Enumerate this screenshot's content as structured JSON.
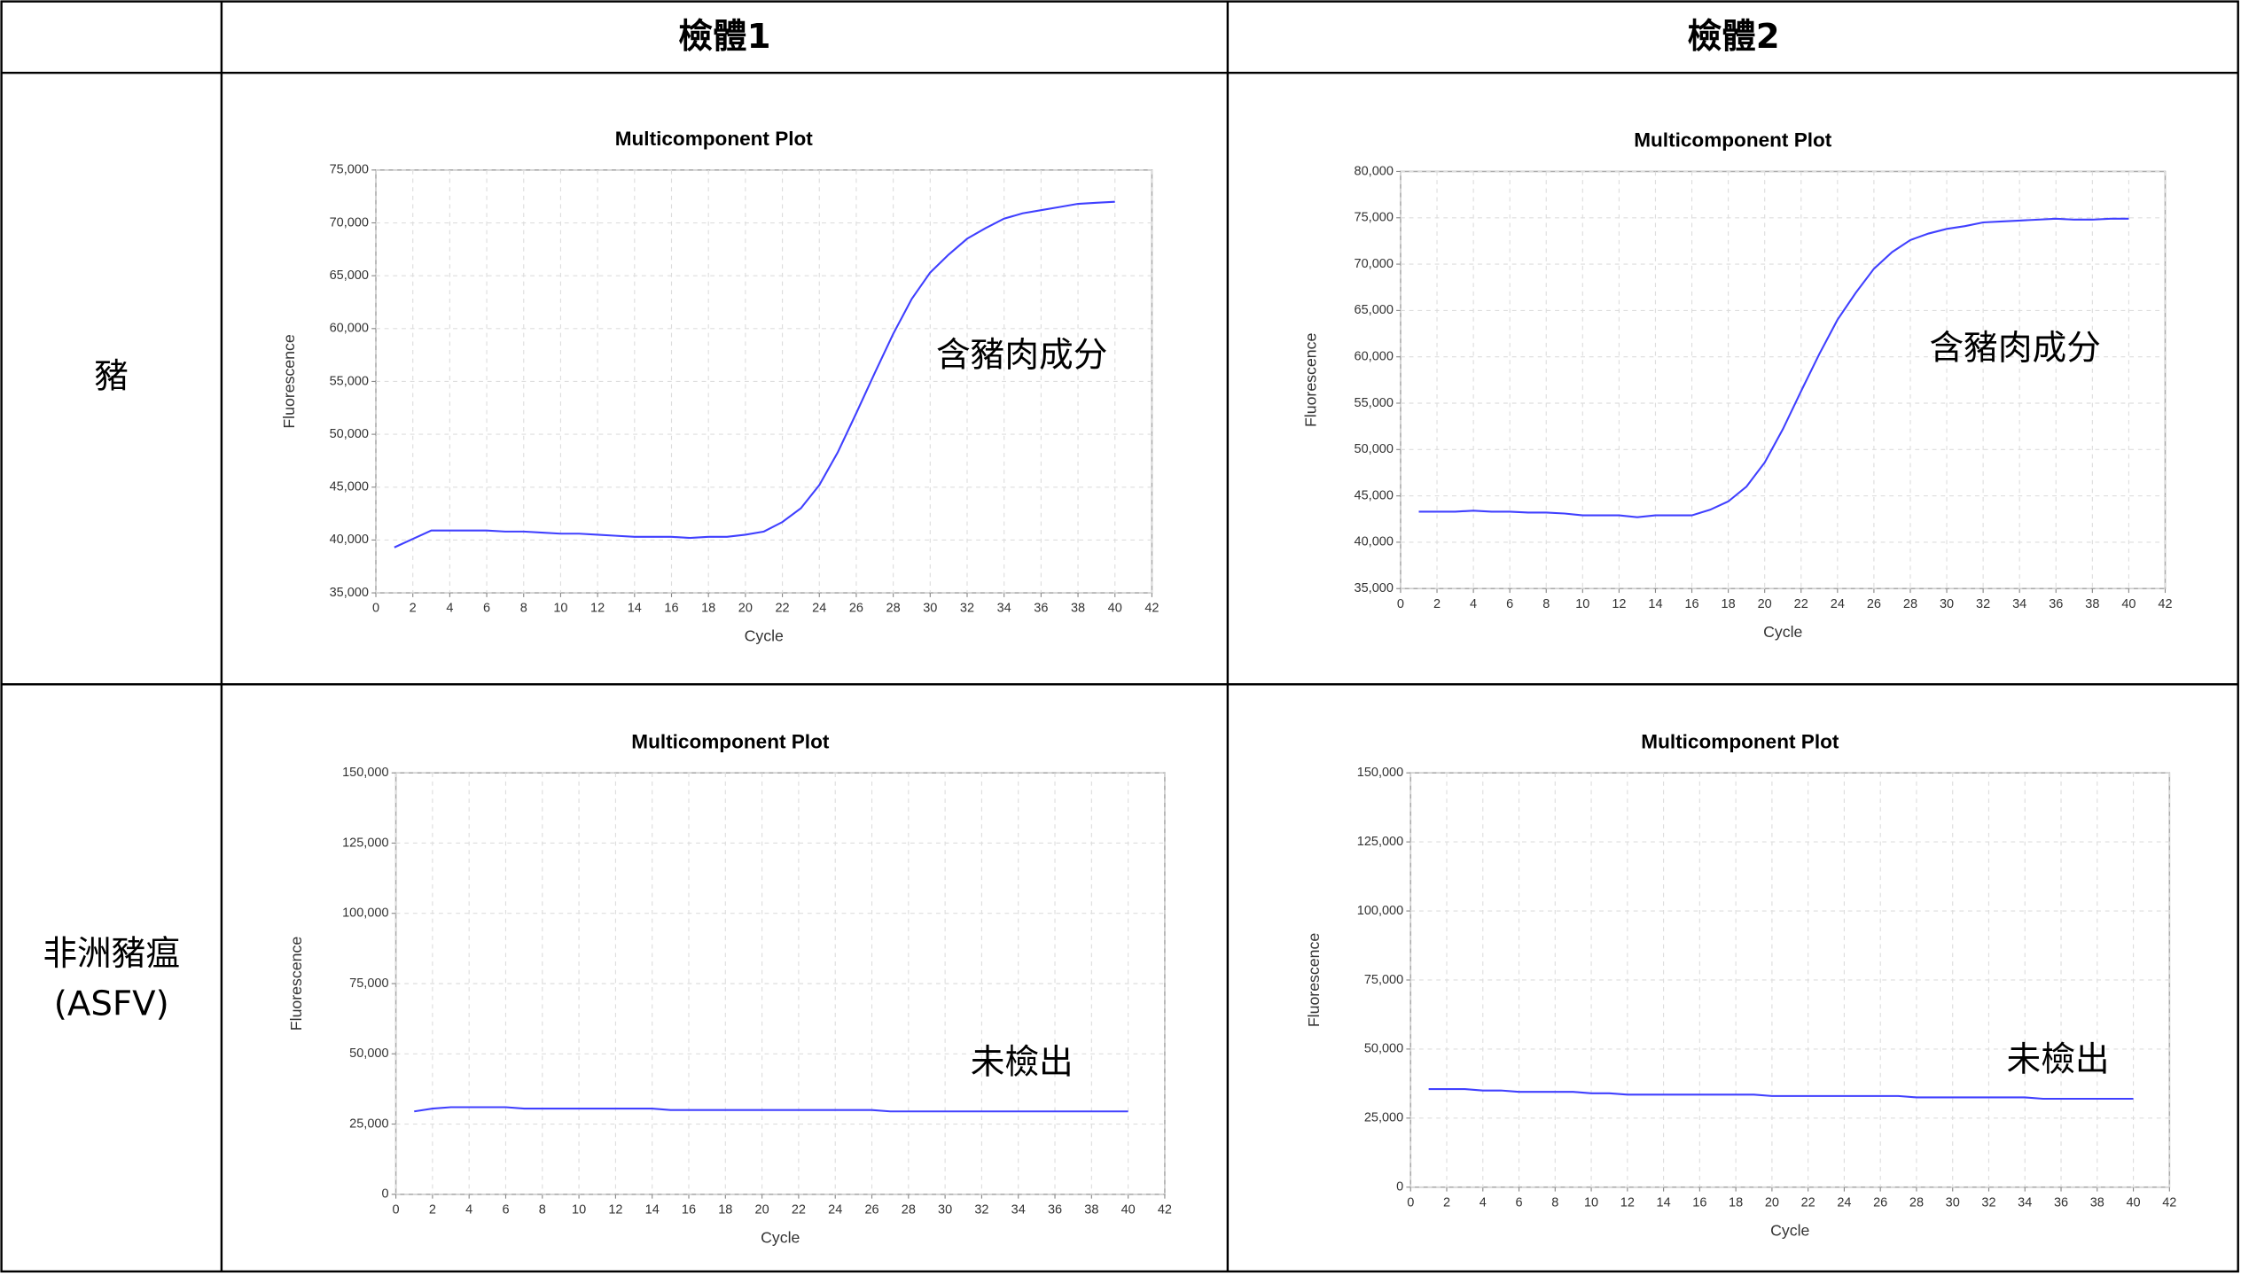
{
  "table": {
    "columns": [
      "檢體1",
      "檢體2"
    ],
    "rows": [
      {
        "lines": [
          "豬"
        ]
      },
      {
        "lines": [
          "非洲豬瘟",
          "(ASFV)"
        ]
      }
    ]
  },
  "chart_data": [
    {
      "type": "line",
      "title": "Multicomponent Plot",
      "xlabel": "Cycle",
      "ylabel": "Fluorescence",
      "annotation": "含豬肉成分",
      "color": "#4040ff",
      "grid": true,
      "x": [
        1,
        2,
        3,
        4,
        5,
        6,
        7,
        8,
        9,
        10,
        11,
        12,
        13,
        14,
        15,
        16,
        17,
        18,
        19,
        20,
        21,
        22,
        23,
        24,
        25,
        26,
        27,
        28,
        29,
        30,
        31,
        32,
        33,
        34,
        35,
        36,
        37,
        38,
        39,
        40
      ],
      "values": [
        39300,
        40100,
        40900,
        40900,
        40900,
        40900,
        40800,
        40800,
        40700,
        40600,
        40600,
        40500,
        40400,
        40300,
        40300,
        40300,
        40200,
        40300,
        40300,
        40500,
        40800,
        41700,
        43000,
        45200,
        48300,
        52000,
        55800,
        59500,
        62800,
        65300,
        67000,
        68500,
        69500,
        70400,
        70900,
        71200,
        71500,
        71800,
        71900,
        72000
      ],
      "xlim": [
        0,
        42
      ],
      "xticks": [
        0,
        2,
        4,
        6,
        8,
        10,
        12,
        14,
        16,
        18,
        20,
        22,
        24,
        26,
        28,
        30,
        32,
        34,
        36,
        38,
        40,
        42
      ],
      "ylim": [
        35000,
        75000
      ],
      "yticks": [
        {
          "value": 35000,
          "label": "35,000"
        },
        {
          "value": 40000,
          "label": "40,000"
        },
        {
          "value": 45000,
          "label": "45,000"
        },
        {
          "value": 50000,
          "label": "50,000"
        },
        {
          "value": 55000,
          "label": "55,000"
        },
        {
          "value": 60000,
          "label": "60,000"
        },
        {
          "value": 65000,
          "label": "65,000"
        },
        {
          "value": 70000,
          "label": "70,000"
        },
        {
          "value": 75000,
          "label": "75,000"
        }
      ]
    },
    {
      "type": "line",
      "title": "Multicomponent Plot",
      "xlabel": "Cycle",
      "ylabel": "Fluorescence",
      "annotation": "含豬肉成分",
      "color": "#4040ff",
      "grid": true,
      "x": [
        1,
        2,
        3,
        4,
        5,
        6,
        7,
        8,
        9,
        10,
        11,
        12,
        13,
        14,
        15,
        16,
        17,
        18,
        19,
        20,
        21,
        22,
        23,
        24,
        25,
        26,
        27,
        28,
        29,
        30,
        31,
        32,
        33,
        34,
        35,
        36,
        37,
        38,
        39,
        40
      ],
      "values": [
        43300,
        43300,
        43300,
        43400,
        43300,
        43300,
        43200,
        43200,
        43100,
        42900,
        42900,
        42900,
        42700,
        42900,
        42900,
        42900,
        43500,
        44400,
        46000,
        48600,
        52200,
        56300,
        60300,
        64000,
        66900,
        69500,
        71300,
        72600,
        73300,
        73800,
        74100,
        74500,
        74600,
        74700,
        74800,
        74900,
        74800,
        74800,
        74900,
        74900
      ],
      "xlim": [
        0,
        42
      ],
      "xticks": [
        0,
        2,
        4,
        6,
        8,
        10,
        12,
        14,
        16,
        18,
        20,
        22,
        24,
        26,
        28,
        30,
        32,
        34,
        36,
        38,
        40,
        42
      ],
      "ylim": [
        35000,
        80000
      ],
      "yticks": [
        {
          "value": 35000,
          "label": "35,000"
        },
        {
          "value": 40000,
          "label": "40,000"
        },
        {
          "value": 45000,
          "label": "45,000"
        },
        {
          "value": 50000,
          "label": "50,000"
        },
        {
          "value": 55000,
          "label": "55,000"
        },
        {
          "value": 60000,
          "label": "60,000"
        },
        {
          "value": 65000,
          "label": "65,000"
        },
        {
          "value": 70000,
          "label": "70,000"
        },
        {
          "value": 75000,
          "label": "75,000"
        },
        {
          "value": 80000,
          "label": "80,000"
        }
      ]
    },
    {
      "type": "line",
      "title": "Multicomponent Plot",
      "xlabel": "Cycle",
      "ylabel": "Fluorescence",
      "annotation": "未檢出",
      "color": "#4040ff",
      "grid": true,
      "x": [
        1,
        2,
        3,
        4,
        5,
        6,
        7,
        8,
        9,
        10,
        11,
        12,
        13,
        14,
        15,
        16,
        17,
        18,
        19,
        20,
        21,
        22,
        23,
        24,
        25,
        26,
        27,
        28,
        29,
        30,
        31,
        32,
        33,
        34,
        35,
        36,
        37,
        38,
        39,
        40
      ],
      "values": [
        29500,
        30500,
        31000,
        31000,
        31000,
        31000,
        30500,
        30500,
        30500,
        30500,
        30500,
        30500,
        30500,
        30500,
        30000,
        30000,
        30000,
        30000,
        30000,
        30000,
        30000,
        30000,
        30000,
        30000,
        30000,
        30000,
        29500,
        29500,
        29500,
        29500,
        29500,
        29500,
        29500,
        29500,
        29500,
        29500,
        29500,
        29500,
        29500,
        29500
      ],
      "xlim": [
        0,
        42
      ],
      "xticks": [
        0,
        2,
        4,
        6,
        8,
        10,
        12,
        14,
        16,
        18,
        20,
        22,
        24,
        26,
        28,
        30,
        32,
        34,
        36,
        38,
        40,
        42
      ],
      "ylim": [
        0,
        150000
      ],
      "yticks": [
        0,
        {
          "value": 25000,
          "label": "25,000"
        },
        {
          "value": 50000,
          "label": "50,000"
        },
        {
          "value": 75000,
          "label": "75,000"
        },
        {
          "value": 100000,
          "label": "100,000"
        },
        {
          "value": 125000,
          "label": "125,000"
        },
        {
          "value": 150000,
          "label": "150,000"
        }
      ]
    },
    {
      "type": "line",
      "title": "Multicomponent Plot",
      "xlabel": "Cycle",
      "ylabel": "Fluorescence",
      "annotation": "未檢出",
      "color": "#4040ff",
      "grid": true,
      "x": [
        1,
        2,
        3,
        4,
        5,
        6,
        7,
        8,
        9,
        10,
        11,
        12,
        13,
        14,
        15,
        16,
        17,
        18,
        19,
        20,
        21,
        22,
        23,
        24,
        25,
        26,
        27,
        28,
        29,
        30,
        31,
        32,
        33,
        34,
        35,
        36,
        37,
        38,
        39,
        40
      ],
      "values": [
        35500,
        35500,
        35500,
        35000,
        35000,
        34500,
        34500,
        34500,
        34500,
        34000,
        34000,
        33500,
        33500,
        33500,
        33500,
        33500,
        33500,
        33500,
        33500,
        33000,
        33000,
        33000,
        33000,
        33000,
        33000,
        33000,
        33000,
        32500,
        32500,
        32500,
        32500,
        32500,
        32500,
        32500,
        32000,
        32000,
        32000,
        32000,
        32000,
        32000
      ],
      "xlim": [
        0,
        42
      ],
      "xticks": [
        0,
        2,
        4,
        6,
        8,
        10,
        12,
        14,
        16,
        18,
        20,
        22,
        24,
        26,
        28,
        30,
        32,
        34,
        36,
        38,
        40,
        42
      ],
      "ylim": [
        0,
        150000
      ],
      "yticks": [
        0,
        {
          "value": 25000,
          "label": "25,000"
        },
        {
          "value": 50000,
          "label": "50,000"
        },
        {
          "value": 75000,
          "label": "75,000"
        },
        {
          "value": 100000,
          "label": "100,000"
        },
        {
          "value": 125000,
          "label": "125,000"
        },
        {
          "value": 150000,
          "label": "150,000"
        }
      ]
    }
  ]
}
